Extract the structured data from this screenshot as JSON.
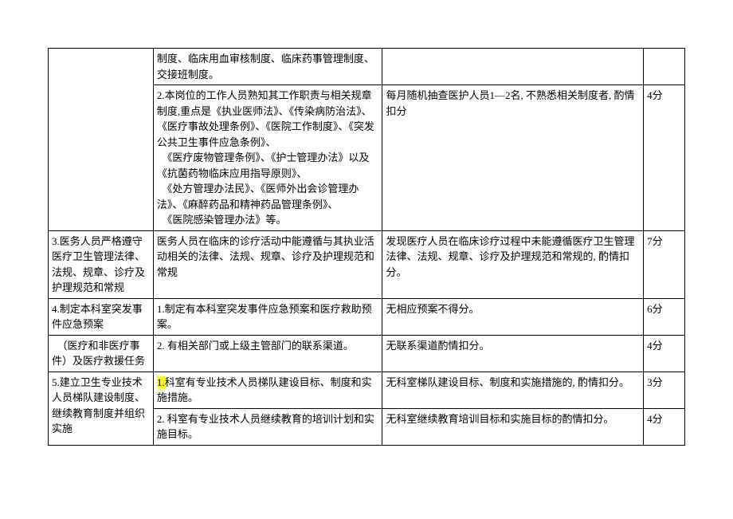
{
  "rows": [
    {
      "col1": "",
      "col2": "制度、临床用血审核制度、临床药事管理制度、交接班制度。",
      "col3": "",
      "col4": ""
    },
    {
      "col1": "",
      "col2_parts": [
        "2.本岗位的工作人员熟知其工作职责与相关规章制度,重点是《执业医师法》、《传染病防治法》、《医疗事故处理条例》、《医院工作制度》、《突发公共卫生事件应急条例》、",
        "　《医疗废物管理条例》、《护士管理办法》以及《抗菌药物临床应用指导原则》、",
        "　《处方管理办法民》、《医师外出会诊管理办法》、《麻醉药品和精神药品管理条例》、",
        "　《医院感染管理办法》等。"
      ],
      "col3": "每月随机抽查医护人员1—2名, 不熟悉相关制度者, 酌情扣分",
      "col4": "4分"
    },
    {
      "col1": "3.医务人员严格遵守医疗卫生管理法律、法规、规章、诊疗及护理规范和常规",
      "col2": "医务人员在临床的诊疗活动中能遵循与其执业活动相关的法律、法规、规章、诊疗及护理规范和常规",
      "col3": "发现医疗人员在临床诊疗过程中未能遵循医疗卫生管理法律、法规、规章、诊疗及护理规范和常规的, 酌情扣分。",
      "col4": "7分"
    },
    {
      "col1": "4.制定本科室突发事件应急预案",
      "col2": "1.制定有本科室突发事件应急预案和医疗救助预案。",
      "col3": "无相应预案不得分。",
      "col4": "6分"
    },
    {
      "col1": "　（医疗和非医疗事件）及医疗救援任务",
      "col2": "2. 有相关部门或上级主管部门的联系渠道。",
      "col3": "无联系渠道酌情扣分。",
      "col4": "4分"
    },
    {
      "col1": "5.建立卫生专业技术人员梯队建设制度、继续教育制度并组织实施",
      "col2_hl": "1.",
      "col2_rest": "科室有专业技术人员梯队建设目标、制度和实施措施。",
      "col3": "无科室梯队建设目标、制度和实施措施的, 酌情扣分。",
      "col4": "3分"
    },
    {
      "col1_cont": true,
      "col2": "2. 科室有专业技术人员继续教育的培训计划和实施目标。",
      "col3": "无科室继续教育培训目标和实施目标的酌情扣分。",
      "col4": "4分"
    }
  ]
}
